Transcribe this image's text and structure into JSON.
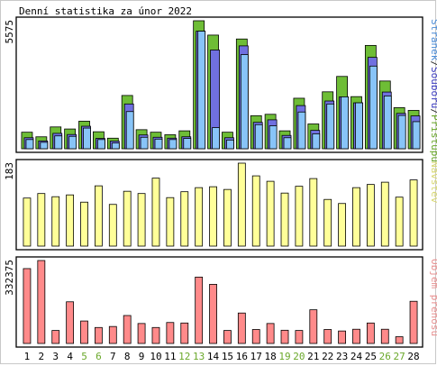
{
  "chart_data": [
    {
      "type": "bar",
      "title": "Denní statistika za únor 2022",
      "categories": [
        "1",
        "2",
        "3",
        "4",
        "5",
        "6",
        "7",
        "8",
        "9",
        "10",
        "11",
        "12",
        "13",
        "14",
        "15",
        "16",
        "17",
        "18",
        "19",
        "20",
        "21",
        "22",
        "23",
        "24",
        "25",
        "26",
        "27",
        "28"
      ],
      "weekend_days": [
        "5",
        "6",
        "12",
        "13",
        "19",
        "20",
        "26",
        "27"
      ],
      "ylabel": "5575",
      "ylim": [
        0,
        5575
      ],
      "legend": {
        "position": "right",
        "parts": [
          {
            "text": "Stránek",
            "color": "#4a8cd8"
          },
          {
            "text": "/",
            "color": "#333333"
          },
          {
            "text": "Souborů",
            "color": "#3a3ac0"
          },
          {
            "text": "/",
            "color": "#333333"
          },
          {
            "text": "Přístupů",
            "color": "#6aa82a"
          }
        ]
      },
      "series": [
        {
          "name": "Přístupů",
          "color": "#6ebd36",
          "values": [
            720,
            520,
            950,
            860,
            1200,
            740,
            460,
            2320,
            830,
            720,
            610,
            780,
            5575,
            4950,
            720,
            4780,
            1440,
            1500,
            780,
            2200,
            1080,
            2480,
            3150,
            2270,
            4500,
            2950,
            1790,
            1670
          ]
        },
        {
          "name": "Souborů",
          "color": "#7070e0",
          "values": [
            480,
            340,
            670,
            620,
            980,
            450,
            330,
            1950,
            600,
            500,
            460,
            520,
            5120,
            4300,
            480,
            4480,
            1150,
            1260,
            580,
            1880,
            800,
            2080,
            2260,
            2000,
            3980,
            2470,
            1540,
            1430
          ]
        },
        {
          "name": "Stránek",
          "color": "#88c4f8",
          "values": [
            400,
            280,
            560,
            540,
            900,
            400,
            250,
            1620,
            500,
            420,
            400,
            450,
            5120,
            920,
            380,
            4100,
            1050,
            1000,
            480,
            1600,
            650,
            1950,
            2260,
            2000,
            3600,
            2300,
            1450,
            1180
          ]
        }
      ]
    },
    {
      "type": "bar",
      "categories": [
        "1",
        "2",
        "3",
        "4",
        "5",
        "6",
        "7",
        "8",
        "9",
        "10",
        "11",
        "12",
        "13",
        "14",
        "15",
        "16",
        "17",
        "18",
        "19",
        "20",
        "21",
        "22",
        "23",
        "24",
        "25",
        "26",
        "27",
        "28"
      ],
      "ylabel": "183",
      "ylim": [
        0,
        183
      ],
      "legend": {
        "position": "right",
        "parts": [
          {
            "text": "Návštěv",
            "color": "#d8d870"
          }
        ]
      },
      "series": [
        {
          "name": "Návštěv",
          "color": "#ffff99",
          "values": [
            106,
            116,
            109,
            113,
            97,
            133,
            92,
            121,
            116,
            150,
            107,
            120,
            129,
            131,
            125,
            183,
            155,
            143,
            117,
            132,
            149,
            103,
            94,
            129,
            136,
            141,
            108,
            146
          ]
        }
      ]
    },
    {
      "type": "bar",
      "categories": [
        "1",
        "2",
        "3",
        "4",
        "5",
        "6",
        "7",
        "8",
        "9",
        "10",
        "11",
        "12",
        "13",
        "14",
        "15",
        "16",
        "17",
        "18",
        "19",
        "20",
        "21",
        "22",
        "23",
        "24",
        "25",
        "26",
        "27",
        "28"
      ],
      "ylabel": "332375",
      "ylim": [
        0,
        332375
      ],
      "legend": {
        "position": "right",
        "parts": [
          {
            "text": "Objem přenosu",
            "color": "#e89090"
          }
        ]
      },
      "series": [
        {
          "name": "Objem přenosu",
          "color": "#ff8a8a",
          "values": [
            300000,
            332375,
            52000,
            167000,
            90000,
            64000,
            68000,
            112000,
            80000,
            64000,
            84000,
            82000,
            266000,
            237000,
            52000,
            122000,
            56000,
            80000,
            53000,
            52000,
            135000,
            56000,
            50000,
            57000,
            82000,
            57000,
            27000,
            169000
          ]
        }
      ]
    }
  ]
}
